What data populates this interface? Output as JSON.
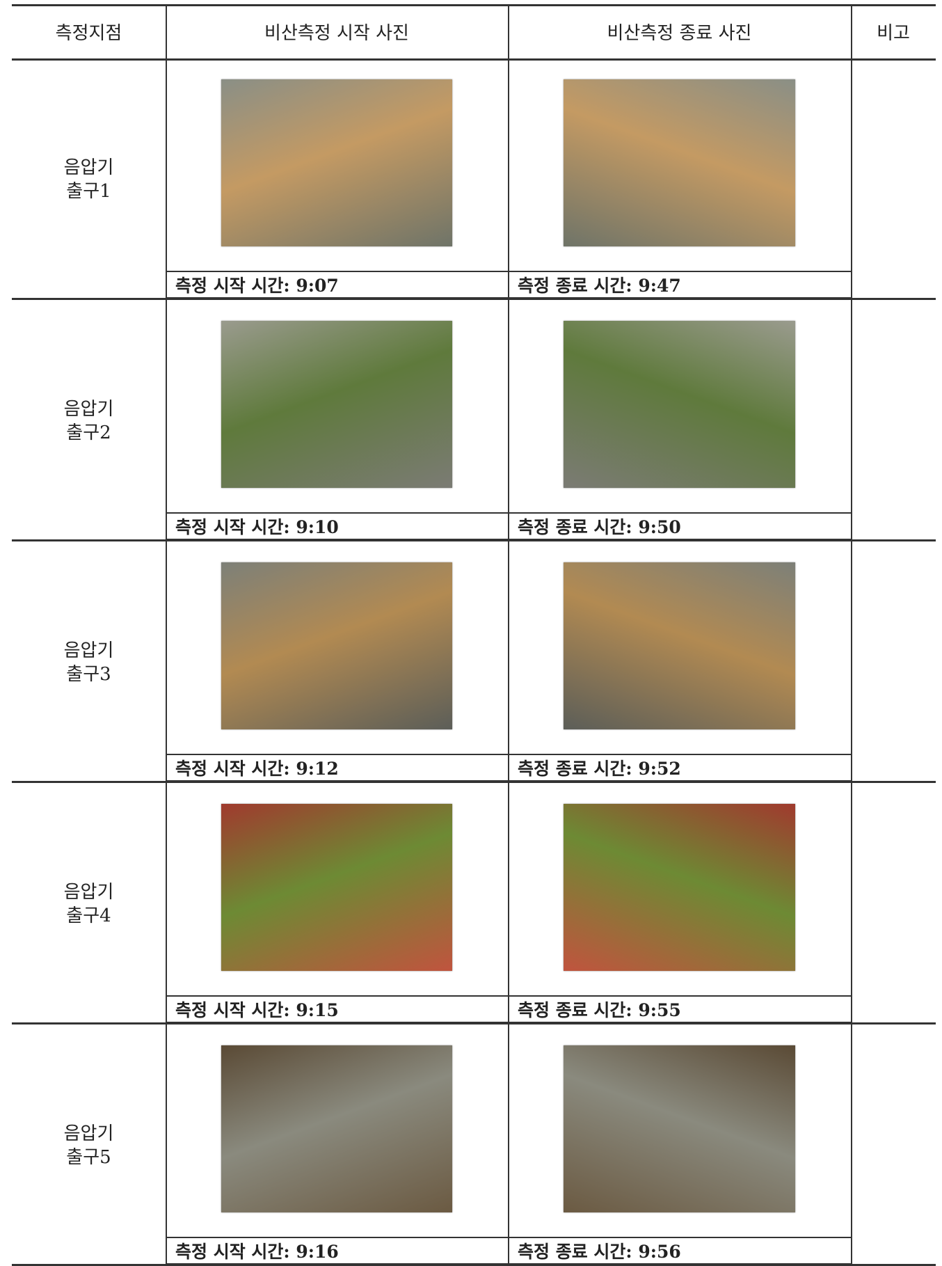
{
  "table": {
    "header": [
      "측정지점",
      "비산측정 시작 사진",
      "비산측정 종료 사진",
      "비고"
    ],
    "rows": [
      {
        "location": [
          "음압기",
          "출구1"
        ],
        "start_caption": "측정 시작 시간: 9:07",
        "end_caption": "측정 종료 시간: 9:47"
      },
      {
        "location": [
          "음압기",
          "출구2"
        ],
        "start_caption": "측정 시작 시간: 9:10",
        "end_caption": "측정 종료 시간: 9:50"
      },
      {
        "location": [
          "음압기",
          "출구3"
        ],
        "start_caption": "측정 시작 시간: 9:12",
        "end_caption": "측정 종료 시간: 9:52"
      },
      {
        "location": [
          "음압기",
          "출구4"
        ],
        "start_caption": "측정 시작 시간: 9:15",
        "end_caption": "측정 종료 시간: 9:55"
      },
      {
        "location": [
          "음압기",
          "출구5"
        ],
        "start_caption": "측정 시작 시간: 9:16",
        "end_caption": "측정 종료 시간: 9:56"
      }
    ]
  }
}
